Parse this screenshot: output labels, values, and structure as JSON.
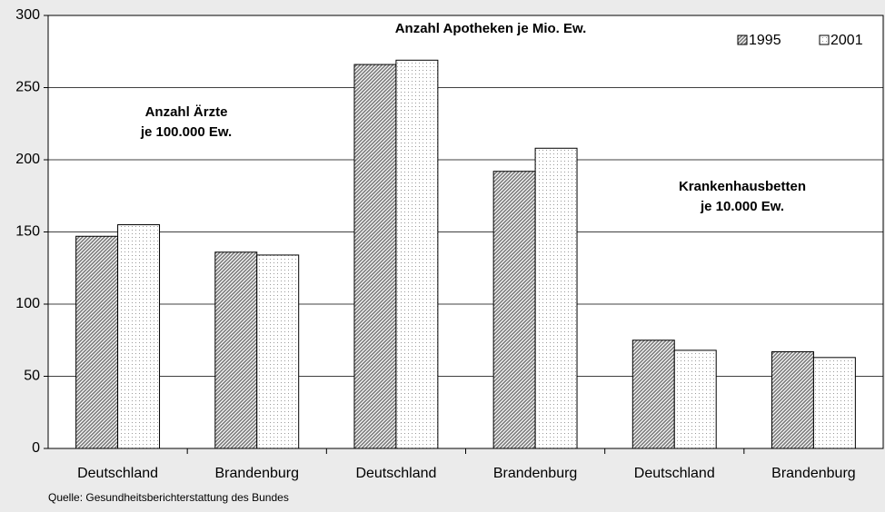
{
  "chart_data": {
    "type": "bar",
    "categories": [
      "Deutschland",
      "Brandenburg",
      "Deutschland",
      "Brandenburg",
      "Deutschland",
      "Brandenburg"
    ],
    "series": [
      {
        "name": "1995",
        "color": "#7a7a7a",
        "pattern": "hatch",
        "values": [
          147,
          136,
          266,
          192,
          75,
          67
        ]
      },
      {
        "name": "2001",
        "color": "#ffffff",
        "pattern": "dots",
        "values": [
          155,
          134,
          269,
          208,
          68,
          63
        ]
      }
    ],
    "annotations": [
      [
        "Anzahl Ärzte",
        "je 100.000 Ew."
      ],
      [
        "Anzahl Apotheken je Mio. Ew."
      ],
      [
        "Krankenhausbetten",
        "je 10.000 Ew."
      ]
    ],
    "source": "Quelle: Gesundheitsberichterstattung des Bundes",
    "ylim": [
      0,
      300
    ],
    "yticks": [
      0,
      50,
      100,
      150,
      200,
      250,
      300
    ],
    "grid": true,
    "legend": "top-right"
  }
}
